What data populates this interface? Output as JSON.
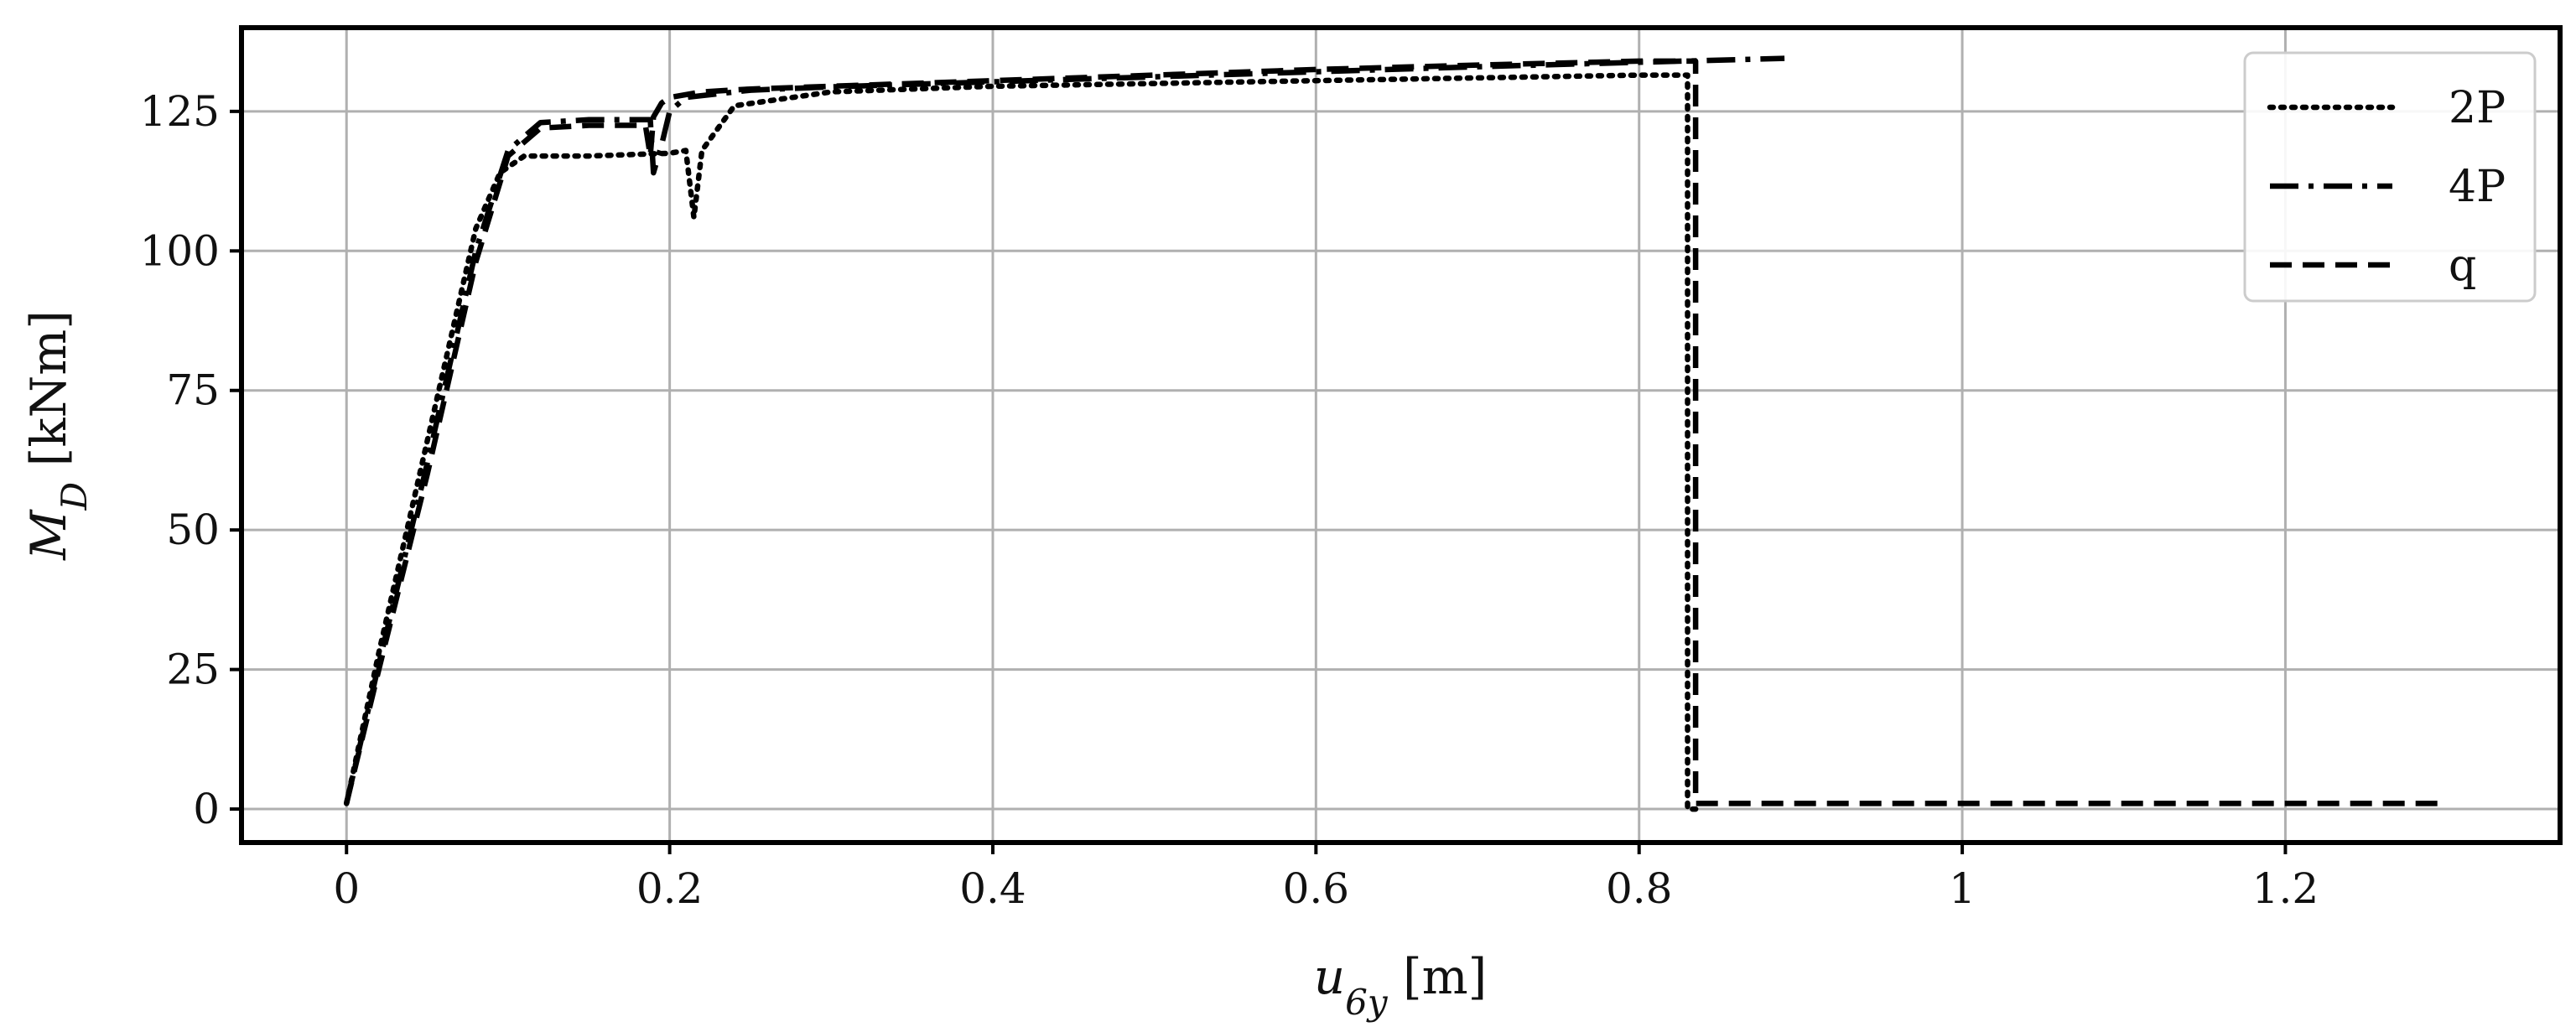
{
  "chart_data": {
    "type": "line",
    "title": "",
    "xlabel": "u_6y [m]",
    "ylabel": "M_D [kNm]",
    "xlim": [
      -0.065,
      1.37
    ],
    "ylim": [
      -6,
      140
    ],
    "xticks": [
      0,
      0.2,
      0.4,
      0.6,
      0.8,
      1.0,
      1.2
    ],
    "xtick_labels": [
      "0",
      "0.2",
      "0.4",
      "0.6",
      "0.8",
      "1",
      "1.2"
    ],
    "yticks": [
      0,
      25,
      50,
      75,
      100,
      125
    ],
    "ytick_labels": [
      "0",
      "25",
      "50",
      "75",
      "100",
      "125"
    ],
    "grid": true,
    "legend_position": "top-right",
    "series": [
      {
        "name": "2P",
        "style": "dotted",
        "color": "#000000",
        "x": [
          0,
          0.02,
          0.05,
          0.08,
          0.095,
          0.11,
          0.15,
          0.2,
          0.21,
          0.215,
          0.22,
          0.24,
          0.3,
          0.4,
          0.5,
          0.6,
          0.7,
          0.8,
          0.83,
          0.83,
          0.835
        ],
        "y": [
          1,
          28,
          66,
          104,
          114,
          117,
          117,
          117.5,
          118,
          106,
          118,
          126,
          128.5,
          129.5,
          130,
          130.5,
          131,
          131.5,
          131.5,
          0,
          0
        ]
      },
      {
        "name": "4P",
        "style": "dashdot",
        "color": "#000000",
        "x": [
          0,
          0.02,
          0.05,
          0.08,
          0.1,
          0.12,
          0.15,
          0.188,
          0.19,
          0.195,
          0.2,
          0.21,
          0.25,
          0.3,
          0.4,
          0.5,
          0.6,
          0.7,
          0.8,
          0.89
        ],
        "y": [
          1,
          26,
          62,
          100,
          118,
          123,
          123.5,
          123.5,
          114,
          119,
          125,
          127.5,
          128.8,
          129.4,
          130.3,
          131.2,
          132.1,
          133,
          133.8,
          134.5
        ]
      },
      {
        "name": "q",
        "style": "dashed",
        "color": "#000000",
        "x": [
          0,
          0.02,
          0.05,
          0.08,
          0.1,
          0.12,
          0.15,
          0.185,
          0.188,
          0.19,
          0.195,
          0.2,
          0.22,
          0.25,
          0.3,
          0.4,
          0.5,
          0.6,
          0.7,
          0.8,
          0.835,
          0.835,
          0.9,
          1.0,
          1.1,
          1.2,
          1.3
        ],
        "y": [
          1,
          25,
          60,
          98,
          117,
          122,
          122.5,
          122.5,
          117,
          124,
          126.5,
          127.5,
          128.5,
          129,
          129.5,
          130.5,
          131.5,
          132.5,
          133.3,
          134,
          134,
          1,
          1,
          1,
          1,
          1,
          1
        ]
      }
    ]
  }
}
